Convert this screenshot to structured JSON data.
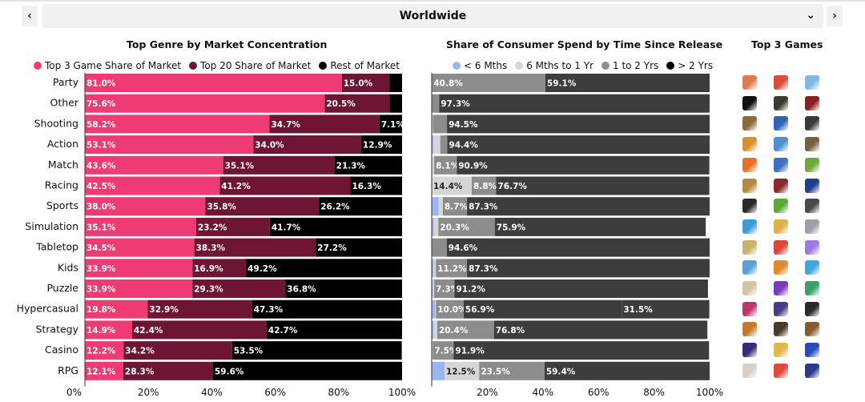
{
  "header": {
    "prev_label": "‹",
    "next_label": "›",
    "region_value": "Worldwide",
    "dropdown_icon": "chevron-down-icon"
  },
  "colors": {
    "top3": "#ef3b73",
    "top20": "#6e1535",
    "rest": "#000000",
    "lt6m": "#9ab5ef",
    "m6to1y": "#d6d6d6",
    "y1to2": "#8c8c8c",
    "gt2y": "#3d3d3d"
  },
  "chart_data": [
    {
      "type": "bar",
      "orientation": "horizontal",
      "stacked": true,
      "title": "Top Genre by Market Concentration",
      "categories": [
        "Party",
        "Other",
        "Shooting",
        "Action",
        "Match",
        "Racing",
        "Sports",
        "Simulation",
        "Tabletop",
        "Kids",
        "Puzzle",
        "Hypercasual",
        "Strategy",
        "Casino",
        "RPG"
      ],
      "series": [
        {
          "name": "Top 3 Game Share of Market",
          "values": [
            81.0,
            75.6,
            58.2,
            53.1,
            43.6,
            42.5,
            38.0,
            35.1,
            34.5,
            33.9,
            33.9,
            19.8,
            14.9,
            12.2,
            12.1
          ],
          "labels": [
            "81.0%",
            "75.6%",
            "58.2%",
            "53.1%",
            "43.6%",
            "42.5%",
            "38.0%",
            "35.1%",
            "34.5%",
            "33.9%",
            "33.9%",
            "19.8%",
            "14.9%",
            "12.2%",
            "12.1%"
          ]
        },
        {
          "name": "Top 20 Share of Market",
          "values": [
            15.0,
            20.5,
            34.7,
            34.0,
            35.1,
            41.2,
            35.8,
            23.2,
            38.3,
            16.9,
            29.3,
            32.9,
            42.4,
            34.2,
            28.3
          ],
          "labels": [
            "15.0%",
            "20.5%",
            "34.7%",
            "34.0%",
            "35.1%",
            "41.2%",
            "35.8%",
            "23.2%",
            "38.3%",
            "16.9%",
            "29.3%",
            "32.9%",
            "42.4%",
            "34.2%",
            "28.3%"
          ]
        },
        {
          "name": "Rest of Market",
          "values": [
            4.0,
            3.9,
            7.1,
            12.9,
            21.3,
            16.3,
            26.2,
            41.7,
            27.2,
            49.2,
            36.8,
            47.3,
            42.7,
            53.5,
            59.6
          ],
          "labels": [
            "",
            "",
            "7.1%",
            "12.9%",
            "21.3%",
            "16.3%",
            "26.2%",
            "41.7%",
            "27.2%",
            "49.2%",
            "36.8%",
            "47.3%",
            "42.7%",
            "53.5%",
            "59.6%"
          ]
        }
      ],
      "xticks": [
        "0%",
        "20%",
        "40%",
        "60%",
        "80%",
        "100%"
      ],
      "xlim": [
        0,
        100
      ]
    },
    {
      "type": "bar",
      "orientation": "horizontal",
      "stacked": true,
      "title": "Share of Consumer Spend by Time Since Release",
      "categories": [
        "Party",
        "Other",
        "Shooting",
        "Action",
        "Match",
        "Racing",
        "Sports",
        "Simulation",
        "Tabletop",
        "Kids",
        "Puzzle",
        "Hypercasual",
        "Strategy",
        "Casino",
        "RPG"
      ],
      "series": [
        {
          "name": "< 6 Mths",
          "values": [
            0,
            0,
            0,
            0.6,
            0,
            0,
            2.5,
            0.8,
            0,
            0.7,
            0.4,
            1.2,
            0.7,
            0.3,
            4.6
          ],
          "labels": [
            "",
            "",
            "",
            "",
            "",
            "",
            "",
            "",
            "",
            "",
            "",
            "",
            "",
            "",
            ""
          ]
        },
        {
          "name": "6 Mths to 1 Yr",
          "values": [
            0.1,
            0,
            0.4,
            2.5,
            0.9,
            14.4,
            1.5,
            1.6,
            0.1,
            0.8,
            0.5,
            0.3,
            1.3,
            0.1,
            12.5
          ],
          "labels": [
            "",
            "",
            "",
            "",
            "",
            "14.4%",
            "",
            "",
            "",
            "",
            "",
            "",
            "",
            "",
            "12.5%"
          ]
        },
        {
          "name": "1 to 2 Yrs",
          "values": [
            40.8,
            2.7,
            5.1,
            2.5,
            8.1,
            8.8,
            8.7,
            20.3,
            5.3,
            11.2,
            7.3,
            10.0,
            20.4,
            7.5,
            23.5
          ],
          "labels": [
            "40.8%",
            "",
            "",
            "",
            "8.1%",
            "8.8%",
            "8.7%",
            "20.3%",
            "",
            "11.2%",
            "7.3%",
            "10.0%",
            "20.4%",
            "7.5%",
            "23.5%"
          ]
        },
        {
          "name": "> 2 Yrs",
          "values": [
            59.1,
            97.3,
            94.5,
            94.4,
            90.9,
            76.7,
            87.3,
            75.9,
            94.6,
            87.3,
            91.2,
            56.9,
            76.8,
            91.9,
            59.4
          ],
          "labels": [
            "59.1%",
            "97.3%",
            "94.5%",
            "94.4%",
            "90.9%",
            "76.7%",
            "87.3%",
            "75.9%",
            "94.6%",
            "87.3%",
            "91.2%",
            "56.9%",
            "76.8%",
            "91.9%",
            "59.4%"
          ]
        },
        {
          "name": "",
          "values": [
            0,
            0,
            0,
            0,
            0,
            0,
            0,
            0,
            0,
            0,
            0,
            31.5,
            0,
            0,
            0
          ],
          "labels": [
            "",
            "",
            "",
            "",
            "",
            "",
            "",
            "",
            "",
            "",
            "",
            "31.5%",
            "",
            "",
            ""
          ]
        }
      ],
      "xticks": [
        "",
        "20%",
        "40%",
        "60%",
        "80%",
        "100%"
      ],
      "xlim": [
        0,
        100
      ]
    }
  ],
  "top_games": {
    "title": "Top 3 Games",
    "icon_colors": [
      [
        "#e07a54",
        "#d94c3a",
        "#7fb8e3"
      ],
      [
        "#111111",
        "#3b3a34",
        "#8c1f1f"
      ],
      [
        "#8a6b3a",
        "#2d64b5",
        "#3a3a3a"
      ],
      [
        "#d98f2b",
        "#4d8fd1",
        "#7b5e3d"
      ],
      [
        "#e66f2a",
        "#3f6fc0",
        "#6fa83c"
      ],
      [
        "#b58a3c",
        "#8a2a2a",
        "#1e3f8a"
      ],
      [
        "#2a2a2a",
        "#5ea83a",
        "#4a4a4a"
      ],
      [
        "#3b9ad8",
        "#e0b14a",
        "#9aa0a8"
      ],
      [
        "#c9b26a",
        "#d94a3a",
        "#9f7be0"
      ],
      [
        "#5aa0d8",
        "#e08a2a",
        "#3fa6e0"
      ],
      [
        "#d6c4a0",
        "#7b3ab8",
        "#3aa06a"
      ],
      [
        "#b93a6a",
        "#4a3a8a",
        "#2a2a2a"
      ],
      [
        "#c47a2a",
        "#4a3a2a",
        "#8a5a2a"
      ],
      [
        "#3a2a7a",
        "#e0b84a",
        "#2a4ab8"
      ],
      [
        "#d8d0c8",
        "#e04a3a",
        "#2a3a8a"
      ]
    ]
  }
}
